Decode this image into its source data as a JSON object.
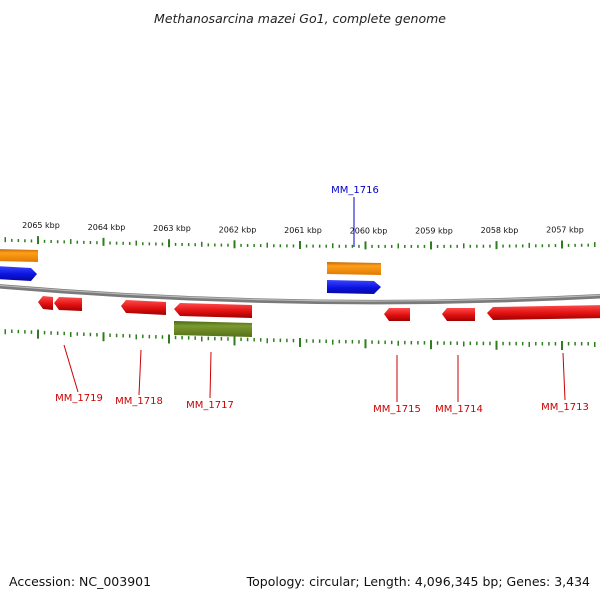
{
  "title": "Methanosarcina mazei Go1, complete genome",
  "footer": {
    "accession": "Accession: NC_003901",
    "summary": "Topology: circular; Length: 4,096,345 bp; Genes: 3,434"
  },
  "colors": {
    "backbone": "#7a7a7a",
    "ticks": "#2e7d1e",
    "gene_forward": "#e01010",
    "gene_reverse": "#0b14e0",
    "feature_orange": "#f08c00",
    "feature_olive": "#5f7d1d",
    "label_red": "#cc0000",
    "label_blue": "#0000cc"
  },
  "ticks": [
    {
      "label": "2065 kbp",
      "kbp": 2065
    },
    {
      "label": "2064 kbp",
      "kbp": 2064
    },
    {
      "label": "2063 kbp",
      "kbp": 2063
    },
    {
      "label": "2062 kbp",
      "kbp": 2062
    },
    {
      "label": "2061 kbp",
      "kbp": 2061
    },
    {
      "label": "2060 kbp",
      "kbp": 2060
    },
    {
      "label": "2059 kbp",
      "kbp": 2059
    },
    {
      "label": "2058 kbp",
      "kbp": 2058
    },
    {
      "label": "2057 kbp",
      "kbp": 2057
    }
  ],
  "gene_labels": [
    {
      "text": "MM_1716",
      "color": "blue"
    },
    {
      "text": "MM_1719",
      "color": "red"
    },
    {
      "text": "MM_1718",
      "color": "red"
    },
    {
      "text": "MM_1717",
      "color": "red"
    },
    {
      "text": "MM_1715",
      "color": "red"
    },
    {
      "text": "MM_1714",
      "color": "red"
    },
    {
      "text": "MM_1713",
      "color": "red"
    }
  ]
}
